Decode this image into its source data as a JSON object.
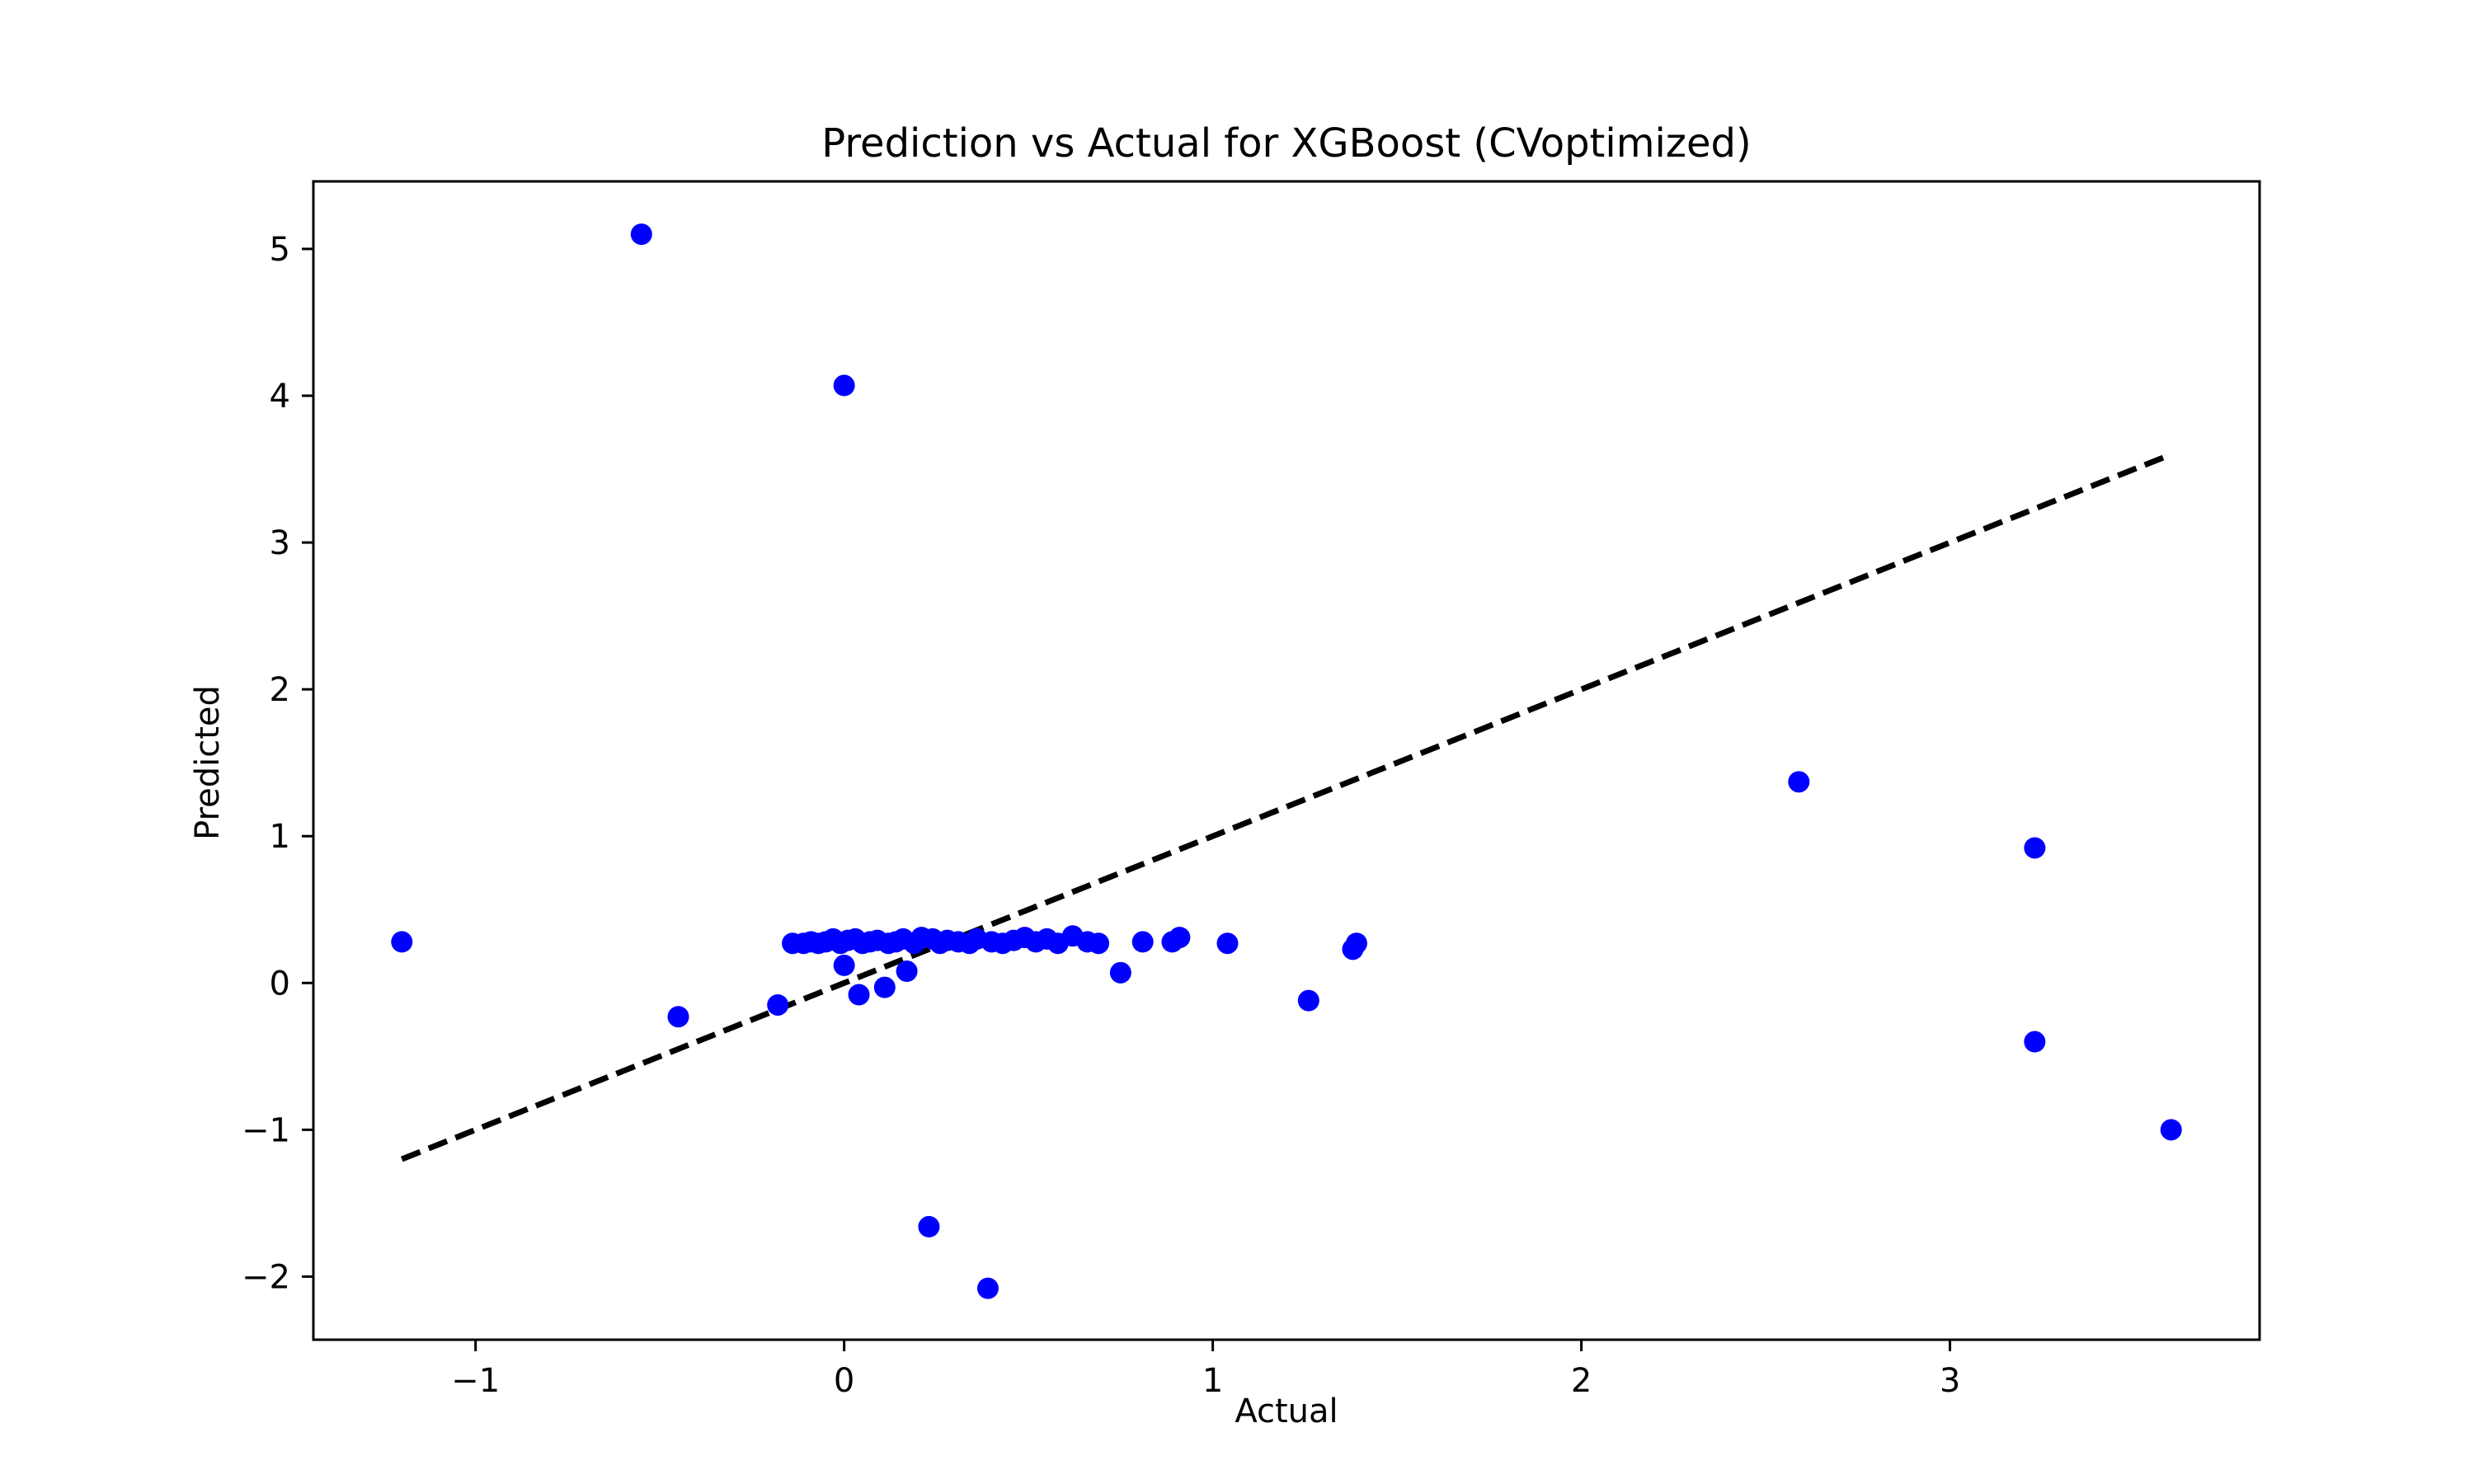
{
  "chart_data": {
    "type": "scatter",
    "title": "Prediction vs Actual for XGBoost (CVoptimized)",
    "xlabel": "Actual",
    "ylabel": "Predicted",
    "xlim": [
      -1.44,
      3.84
    ],
    "ylim": [
      -2.43,
      5.46
    ],
    "xticks": [
      -1,
      0,
      1,
      2,
      3
    ],
    "xtick_labels": [
      "−1",
      "0",
      "1",
      "2",
      "3"
    ],
    "yticks": [
      -2,
      -1,
      0,
      1,
      2,
      3,
      4,
      5
    ],
    "ytick_labels": [
      "−2",
      "−1",
      "0",
      "1",
      "2",
      "3",
      "4",
      "5"
    ],
    "grid": false,
    "point_color": "#0000ff",
    "line_color": "#000000",
    "reference_line": {
      "x": [
        -1.2,
        3.6
      ],
      "y": [
        -1.2,
        3.6
      ],
      "style": "dashed"
    },
    "points": [
      {
        "x": -1.2,
        "y": 0.28
      },
      {
        "x": -0.55,
        "y": 5.1
      },
      {
        "x": -0.45,
        "y": -0.23
      },
      {
        "x": -0.18,
        "y": -0.15
      },
      {
        "x": -0.14,
        "y": 0.27
      },
      {
        "x": -0.11,
        "y": 0.27
      },
      {
        "x": -0.09,
        "y": 0.28
      },
      {
        "x": -0.07,
        "y": 0.27
      },
      {
        "x": -0.05,
        "y": 0.28
      },
      {
        "x": -0.03,
        "y": 0.3
      },
      {
        "x": -0.01,
        "y": 0.27
      },
      {
        "x": 0.0,
        "y": 4.07
      },
      {
        "x": 0.0,
        "y": 0.12
      },
      {
        "x": 0.01,
        "y": 0.29
      },
      {
        "x": 0.03,
        "y": 0.3
      },
      {
        "x": 0.04,
        "y": -0.08
      },
      {
        "x": 0.05,
        "y": 0.27
      },
      {
        "x": 0.07,
        "y": 0.28
      },
      {
        "x": 0.09,
        "y": 0.29
      },
      {
        "x": 0.11,
        "y": -0.03
      },
      {
        "x": 0.12,
        "y": 0.27
      },
      {
        "x": 0.14,
        "y": 0.28
      },
      {
        "x": 0.16,
        "y": 0.3
      },
      {
        "x": 0.17,
        "y": 0.08
      },
      {
        "x": 0.19,
        "y": 0.27
      },
      {
        "x": 0.21,
        "y": 0.31
      },
      {
        "x": 0.23,
        "y": -1.66
      },
      {
        "x": 0.24,
        "y": 0.3
      },
      {
        "x": 0.26,
        "y": 0.27
      },
      {
        "x": 0.28,
        "y": 0.29
      },
      {
        "x": 0.31,
        "y": 0.28
      },
      {
        "x": 0.34,
        "y": 0.27
      },
      {
        "x": 0.36,
        "y": 0.3
      },
      {
        "x": 0.39,
        "y": -2.08
      },
      {
        "x": 0.4,
        "y": 0.28
      },
      {
        "x": 0.43,
        "y": 0.27
      },
      {
        "x": 0.46,
        "y": 0.29
      },
      {
        "x": 0.49,
        "y": 0.31
      },
      {
        "x": 0.52,
        "y": 0.28
      },
      {
        "x": 0.55,
        "y": 0.3
      },
      {
        "x": 0.58,
        "y": 0.27
      },
      {
        "x": 0.62,
        "y": 0.32
      },
      {
        "x": 0.66,
        "y": 0.28
      },
      {
        "x": 0.69,
        "y": 0.27
      },
      {
        "x": 0.75,
        "y": 0.07
      },
      {
        "x": 0.81,
        "y": 0.28
      },
      {
        "x": 0.89,
        "y": 0.28
      },
      {
        "x": 0.91,
        "y": 0.31
      },
      {
        "x": 1.04,
        "y": 0.27
      },
      {
        "x": 1.26,
        "y": -0.12
      },
      {
        "x": 1.38,
        "y": 0.23
      },
      {
        "x": 1.39,
        "y": 0.27
      },
      {
        "x": 2.59,
        "y": 1.37
      },
      {
        "x": 3.23,
        "y": 0.92
      },
      {
        "x": 3.23,
        "y": -0.4
      },
      {
        "x": 3.6,
        "y": -1.0
      }
    ]
  }
}
